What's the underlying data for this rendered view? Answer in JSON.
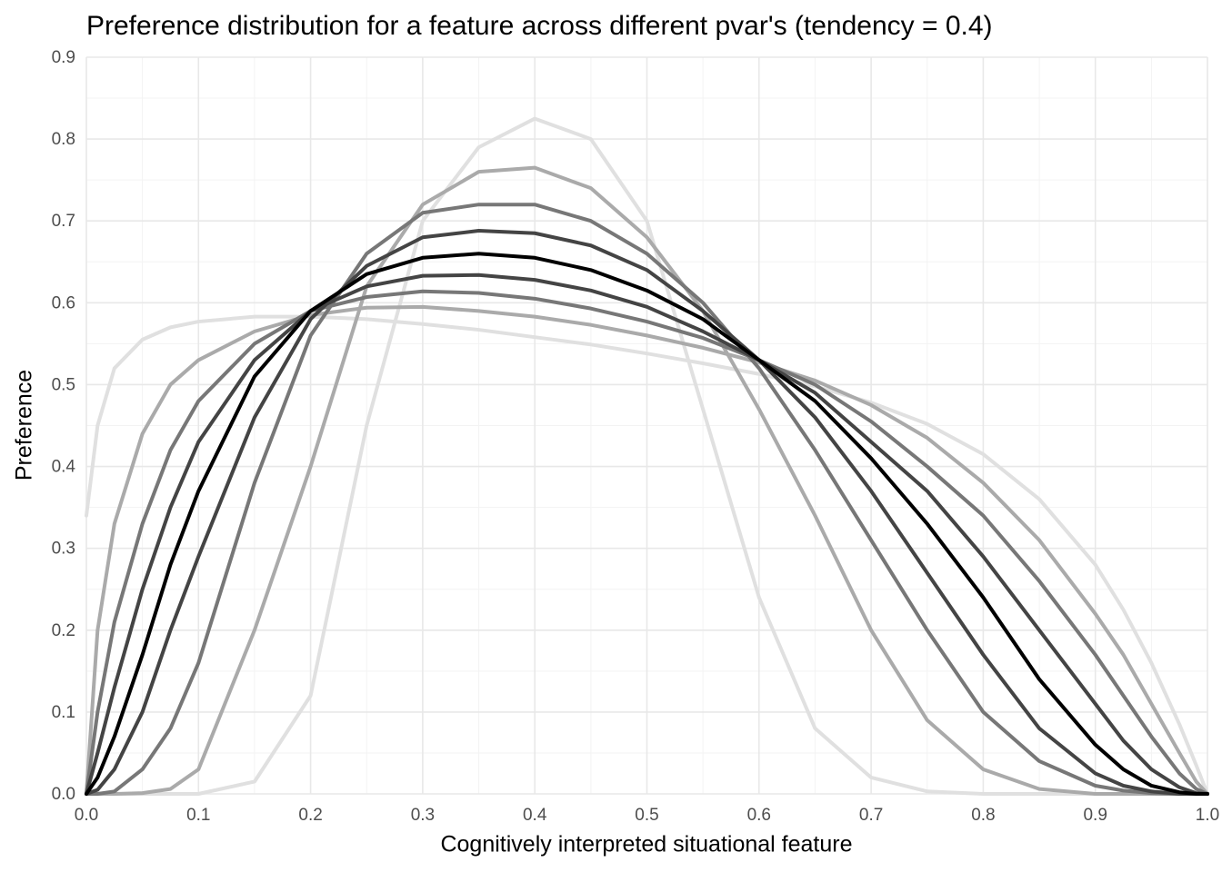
{
  "chart_data": {
    "type": "line",
    "title": "Preference distribution for a feature across different pvar's (tendency = 0.4)",
    "x_label": "Cognitively interpreted situational feature",
    "y_label": "Preference",
    "x": [
      0,
      0.01,
      0.025,
      0.05,
      0.075,
      0.1,
      0.15,
      0.2,
      0.25,
      0.3,
      0.35,
      0.4,
      0.45,
      0.5,
      0.55,
      0.6,
      0.65,
      0.7,
      0.75,
      0.8,
      0.85,
      0.9,
      0.925,
      0.95,
      0.975,
      0.99,
      1
    ],
    "series": [
      {
        "color": "#e0e0e0",
        "values": [
          0,
          0,
          0,
          0,
          0,
          0,
          0.015,
          0.12,
          0.45,
          0.7,
          0.79,
          0.825,
          0.8,
          0.7,
          0.47,
          0.24,
          0.08,
          0.02,
          0.003,
          0,
          0,
          0,
          0,
          0,
          0,
          0,
          0
        ]
      },
      {
        "color": "#e0e0e0",
        "values": [
          0.34,
          0.45,
          0.52,
          0.555,
          0.57,
          0.577,
          0.583,
          0.583,
          0.58,
          0.574,
          0.567,
          0.558,
          0.549,
          0.538,
          0.526,
          0.513,
          0.498,
          0.478,
          0.452,
          0.415,
          0.36,
          0.28,
          0.225,
          0.16,
          0.085,
          0.035,
          0
        ]
      },
      {
        "color": "#aaaaaa",
        "values": [
          0,
          0,
          0,
          0.001,
          0.006,
          0.03,
          0.2,
          0.4,
          0.62,
          0.72,
          0.76,
          0.765,
          0.74,
          0.68,
          0.59,
          0.47,
          0.34,
          0.2,
          0.09,
          0.03,
          0.006,
          0,
          0,
          0,
          0,
          0,
          0
        ]
      },
      {
        "color": "#aaaaaa",
        "values": [
          0,
          0.2,
          0.33,
          0.44,
          0.5,
          0.53,
          0.565,
          0.585,
          0.594,
          0.595,
          0.59,
          0.583,
          0.573,
          0.56,
          0.545,
          0.527,
          0.505,
          0.475,
          0.435,
          0.38,
          0.31,
          0.22,
          0.17,
          0.11,
          0.05,
          0.015,
          0
        ]
      },
      {
        "color": "#777777",
        "values": [
          0,
          0,
          0.003,
          0.03,
          0.08,
          0.16,
          0.38,
          0.56,
          0.66,
          0.71,
          0.72,
          0.72,
          0.7,
          0.66,
          0.6,
          0.52,
          0.42,
          0.31,
          0.2,
          0.1,
          0.04,
          0.01,
          0.004,
          0.001,
          0,
          0,
          0
        ]
      },
      {
        "color": "#777777",
        "values": [
          0,
          0.1,
          0.21,
          0.33,
          0.42,
          0.48,
          0.55,
          0.59,
          0.607,
          0.614,
          0.612,
          0.605,
          0.593,
          0.577,
          0.557,
          0.53,
          0.5,
          0.455,
          0.4,
          0.34,
          0.26,
          0.17,
          0.12,
          0.07,
          0.025,
          0.006,
          0
        ]
      },
      {
        "color": "#444444",
        "values": [
          0,
          0.005,
          0.03,
          0.1,
          0.2,
          0.29,
          0.46,
          0.58,
          0.645,
          0.68,
          0.688,
          0.685,
          0.67,
          0.64,
          0.59,
          0.53,
          0.46,
          0.37,
          0.27,
          0.17,
          0.08,
          0.025,
          0.01,
          0.003,
          0,
          0,
          0
        ]
      },
      {
        "color": "#444444",
        "values": [
          0,
          0.05,
          0.13,
          0.25,
          0.35,
          0.43,
          0.53,
          0.59,
          0.62,
          0.633,
          0.634,
          0.628,
          0.615,
          0.595,
          0.565,
          0.53,
          0.49,
          0.43,
          0.37,
          0.29,
          0.2,
          0.11,
          0.065,
          0.03,
          0.008,
          0.001,
          0
        ]
      },
      {
        "color": "#000000",
        "values": [
          0,
          0.02,
          0.07,
          0.17,
          0.28,
          0.37,
          0.51,
          0.59,
          0.635,
          0.655,
          0.66,
          0.655,
          0.64,
          0.615,
          0.58,
          0.53,
          0.48,
          0.41,
          0.33,
          0.24,
          0.14,
          0.06,
          0.03,
          0.01,
          0.002,
          0,
          0
        ]
      }
    ],
    "xlim": [
      0,
      1
    ],
    "ylim": [
      0,
      0.9
    ],
    "xticks": [
      {
        "value": 0,
        "label": "0.0"
      },
      0.1,
      0.2,
      0.3,
      0.4,
      0.5,
      0.6,
      0.7,
      0.8,
      0.9,
      {
        "value": 1,
        "label": "1.0"
      }
    ],
    "yticks": [
      {
        "value": 0,
        "label": "0.0"
      },
      0.1,
      0.2,
      0.3,
      0.4,
      0.5,
      0.6,
      0.7,
      0.8,
      0.9
    ],
    "grid": true
  }
}
